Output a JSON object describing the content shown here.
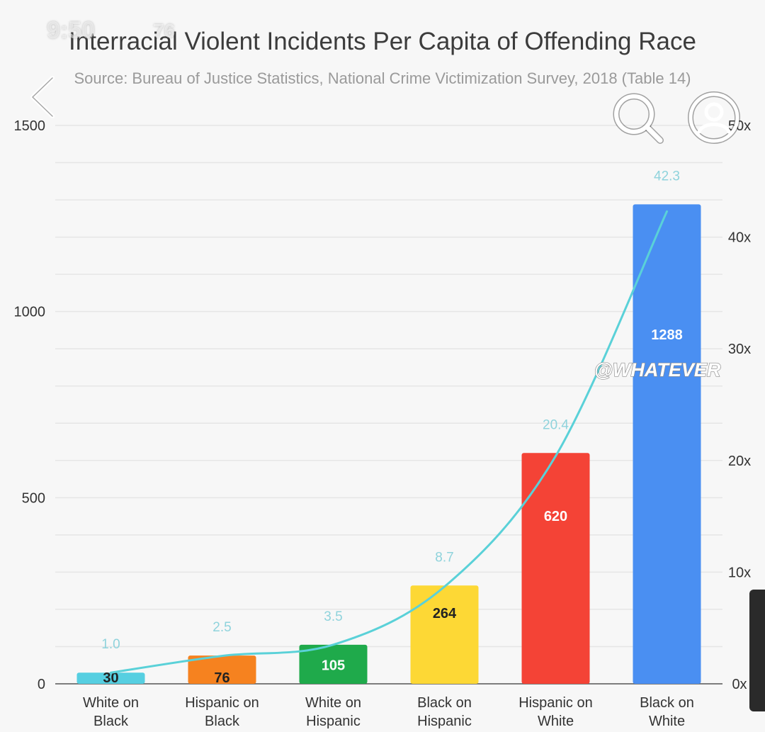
{
  "status_bar": {
    "time": "9:50",
    "battery_text": "76"
  },
  "nav": {
    "back_icon": "chevron-left-icon",
    "search_icon": "search-icon",
    "profile_icon": "user-circle-icon"
  },
  "watermark": "@WHATEVER",
  "colors": {
    "bars": [
      "#56cfe1",
      "#f6821f",
      "#1faa4b",
      "#fdd835",
      "#f44336",
      "#4a8ff2"
    ],
    "curve": "#5ad1d8",
    "value_labels": [
      "#222222",
      "#222222",
      "#ffffff",
      "#222222",
      "#ffffff",
      "#ffffff"
    ]
  },
  "chart_data": {
    "type": "bar",
    "title": "Interracial Violent Incidents Per Capita of Offending Race",
    "subtitle": "Source: Bureau of Justice Statistics, National Crime Victimization Survey, 2018 (Table 14)",
    "categories": [
      [
        "White on",
        "Black"
      ],
      [
        "Hispanic on",
        "Black"
      ],
      [
        "White on",
        "Hispanic"
      ],
      [
        "Black on",
        "Hispanic"
      ],
      [
        "Hispanic on",
        "White"
      ],
      [
        "Black on",
        "White"
      ]
    ],
    "series": [
      {
        "type": "bar",
        "axis": "left",
        "values": [
          30,
          76,
          105,
          264,
          620,
          1288
        ],
        "labels": [
          "30",
          "76",
          "105",
          "264",
          "620",
          "1288"
        ]
      },
      {
        "type": "line",
        "axis": "right",
        "values": [
          1.0,
          2.5,
          3.5,
          8.7,
          20.4,
          42.3
        ],
        "labels": [
          "1.0",
          "2.5",
          "3.5",
          "8.7",
          "20.4",
          "42.3"
        ]
      }
    ],
    "ylim": [
      0,
      1500
    ],
    "yticks": [
      0,
      500,
      1000,
      1500
    ],
    "ytick_labels": [
      "0",
      "500",
      "1000",
      "1500"
    ],
    "y2lim": [
      0,
      50
    ],
    "y2ticks": [
      0,
      10,
      20,
      30,
      40,
      50
    ],
    "y2tick_labels": [
      "0x",
      "10x",
      "20x",
      "30x",
      "40x",
      "50x"
    ],
    "grid": true,
    "legend": "none"
  }
}
